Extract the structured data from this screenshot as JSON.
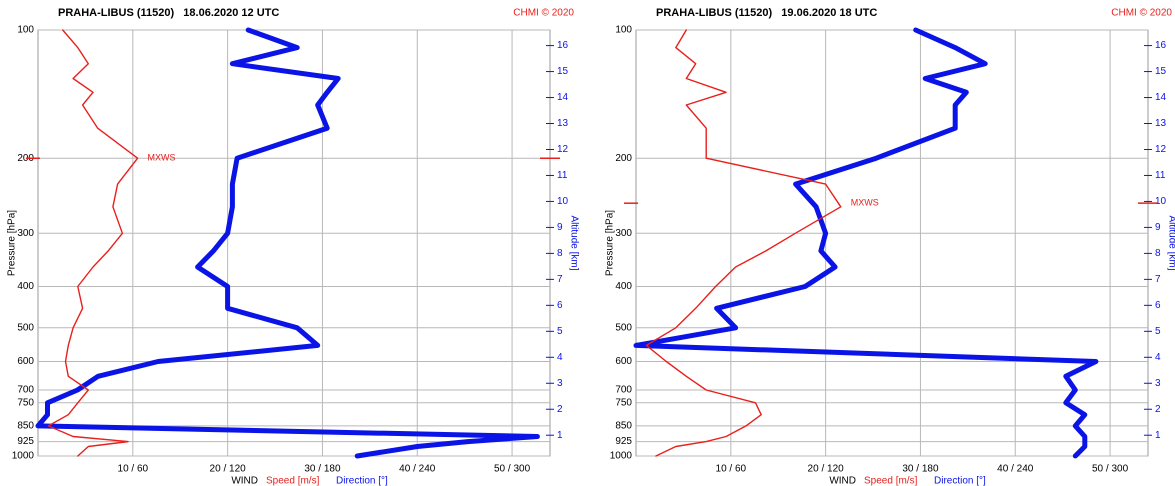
{
  "chart_data": [
    {
      "type": "line",
      "title": "PRAHA-LIBUS (11520)   18.06.2020 12 UTC",
      "credit": "CHMI © 2020",
      "y_label": "Pressure [hPa]",
      "y2_label": "Altitude [km]",
      "x_label": "WIND",
      "log_y": true,
      "y_reversed": true,
      "grid": true,
      "ylim": [
        100,
        1000
      ],
      "yticks": [
        100,
        200,
        300,
        400,
        500,
        600,
        700,
        750,
        850,
        925,
        1000
      ],
      "y2lim": [
        0.2,
        16.6
      ],
      "y2ticks": [
        1,
        2,
        3,
        4,
        5,
        6,
        7,
        8,
        9,
        10,
        11,
        12,
        13,
        14,
        15,
        16
      ],
      "xlim": [
        0,
        54
      ],
      "x2lim": [
        0,
        324
      ],
      "xticks": [
        {
          "value": 10,
          "label": "10 / 60"
        },
        {
          "value": 20,
          "label": "20 / 120"
        },
        {
          "value": 30,
          "label": "30 / 180"
        },
        {
          "value": 40,
          "label": "40 / 240"
        },
        {
          "value": 50,
          "label": "50 / 300"
        }
      ],
      "annotation": {
        "label": "MXWS",
        "pressure": 200
      },
      "y": [
        100,
        110,
        120,
        130,
        140,
        150,
        170,
        200,
        230,
        260,
        300,
        330,
        360,
        400,
        450,
        500,
        550,
        600,
        650,
        700,
        750,
        800,
        850,
        900,
        925,
        950,
        1000
      ],
      "series": [
        {
          "name": "Speed [m/s]",
          "color": "#e8201c",
          "axis": "x",
          "values": [
            2.6,
            4.2,
            5.3,
            3.7,
            5.8,
            4.7,
            6.3,
            10.5,
            8.4,
            7.9,
            8.9,
            7.4,
            5.8,
            4.2,
            4.7,
            3.7,
            3.2,
            2.9,
            3.2,
            5.3,
            4.2,
            3.2,
            1.1,
            3.7,
            9.5,
            5.3,
            4.2
          ]
        },
        {
          "name": "Direction [°]",
          "color": "#0a14e6",
          "axis": "x2",
          "values": [
            133,
            164,
            123,
            190,
            183,
            177,
            183,
            126,
            123,
            123,
            120,
            111,
            101,
            120,
            120,
            164,
            177,
            76,
            38,
            25,
            6,
            6,
            0,
            316,
            272,
            240,
            202
          ]
        }
      ]
    },
    {
      "type": "line",
      "title": "PRAHA-LIBUS (11520)   19.06.2020 18 UTC",
      "credit": "CHMI © 2020",
      "y_label": "Pressure [hPa]",
      "y2_label": "Altitude [km]",
      "x_label": "WIND",
      "log_y": true,
      "y_reversed": true,
      "grid": true,
      "ylim": [
        100,
        1000
      ],
      "yticks": [
        100,
        200,
        300,
        400,
        500,
        600,
        700,
        750,
        850,
        925,
        1000
      ],
      "y2lim": [
        0.2,
        16.6
      ],
      "y2ticks": [
        1,
        2,
        3,
        4,
        5,
        6,
        7,
        8,
        9,
        10,
        11,
        12,
        13,
        14,
        15,
        16
      ],
      "xlim": [
        0,
        54
      ],
      "x2lim": [
        0,
        324
      ],
      "xticks": [
        {
          "value": 10,
          "label": "10 / 60"
        },
        {
          "value": 20,
          "label": "20 / 120"
        },
        {
          "value": 30,
          "label": "30 / 180"
        },
        {
          "value": 40,
          "label": "40 / 240"
        },
        {
          "value": 50,
          "label": "50 / 300"
        }
      ],
      "annotation": {
        "label": "MXWS",
        "pressure": 255
      },
      "y": [
        100,
        110,
        120,
        130,
        140,
        150,
        170,
        200,
        230,
        260,
        300,
        330,
        360,
        400,
        450,
        500,
        550,
        600,
        650,
        700,
        750,
        800,
        850,
        900,
        925,
        950,
        1000
      ],
      "series": [
        {
          "name": "Speed [m/s]",
          "color": "#e8201c",
          "axis": "x",
          "values": [
            5.3,
            4.2,
            6.3,
            5.3,
            9.5,
            5.3,
            7.4,
            7.4,
            20,
            21.6,
            16.8,
            13.7,
            10.5,
            8.4,
            6.3,
            4.2,
            1.1,
            3.2,
            5.3,
            7.4,
            12.6,
            13.2,
            11.6,
            9.5,
            7.4,
            4.2,
            2.1
          ]
        },
        {
          "name": "Direction [°]",
          "color": "#0a14e6",
          "axis": "x2",
          "values": [
            177,
            202,
            221,
            183,
            209,
            202,
            202,
            152,
            101,
            114,
            120,
            117,
            126,
            107,
            51,
            63,
            0,
            291,
            272,
            278,
            272,
            284,
            278,
            284,
            284,
            284,
            278
          ]
        }
      ]
    }
  ]
}
